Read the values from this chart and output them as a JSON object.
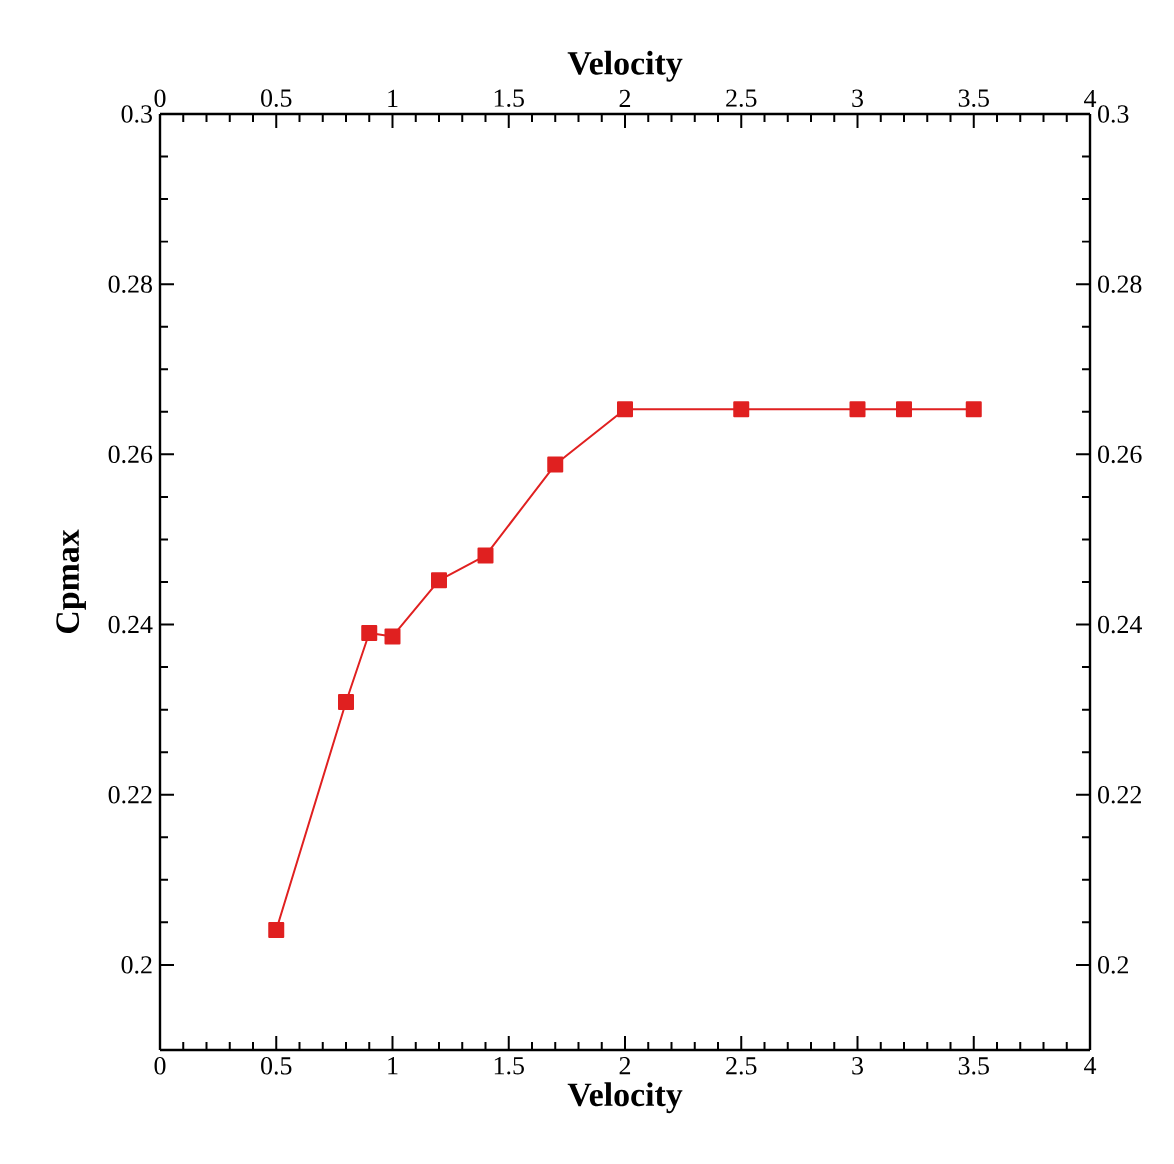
{
  "chart_data": {
    "type": "line",
    "xlabel": "Velocity",
    "ylabel": "Cpmax",
    "x2label": "Velocity",
    "x": [
      0.5,
      0.8,
      0.9,
      1.0,
      1.2,
      1.4,
      1.7,
      2.0,
      2.5,
      3.0,
      3.2,
      3.5
    ],
    "series": [
      {
        "color": "#e02020",
        "values": [
          0.2041,
          0.2309,
          0.239,
          0.2386,
          0.2452,
          0.2481,
          0.2588,
          0.2653,
          0.2653,
          0.2653,
          0.2653,
          0.2653
        ]
      }
    ],
    "marker": "square",
    "line_style": "solid",
    "xlim": [
      0,
      4
    ],
    "xticks": [
      0,
      0.5,
      1,
      1.5,
      2,
      2.5,
      3,
      3.5,
      4
    ],
    "x2lim": [
      0,
      4
    ],
    "x2ticks": [
      0,
      0.5,
      1,
      1.5,
      2,
      2.5,
      3,
      3.5,
      4
    ],
    "ylim": [
      0.19,
      0.3
    ],
    "yticks": [
      0.2,
      0.22,
      0.24,
      0.26,
      0.28,
      0.3
    ],
    "y2lim": [
      0.19,
      0.3
    ],
    "y2ticks": [
      0.2,
      0.22,
      0.24,
      0.26,
      0.28,
      0.3
    ]
  }
}
